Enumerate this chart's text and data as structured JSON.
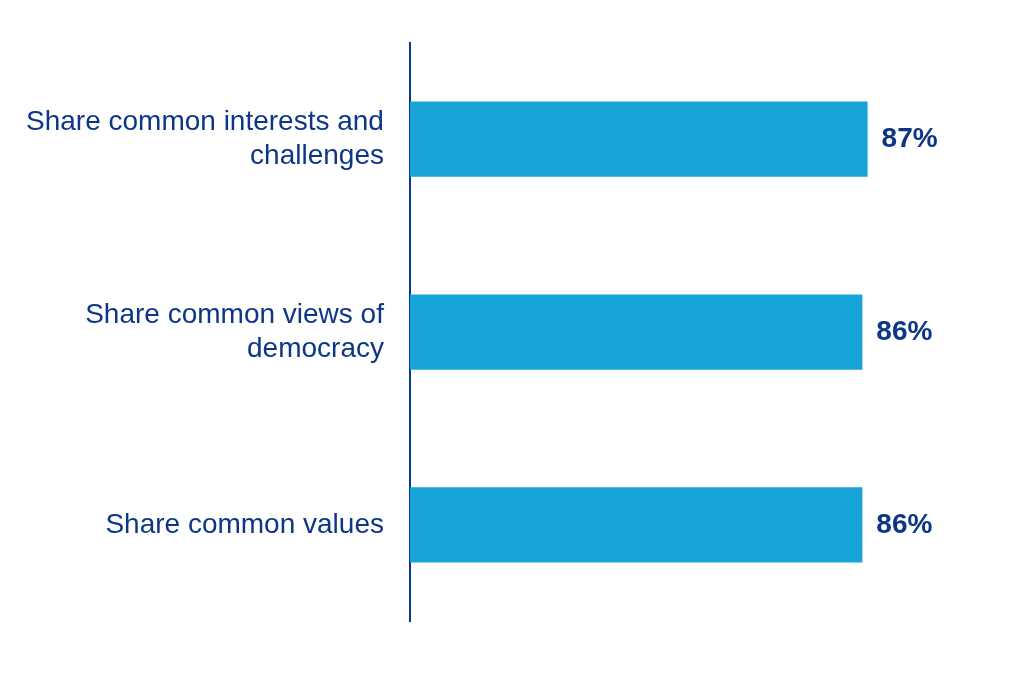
{
  "chart_data": {
    "type": "bar",
    "orientation": "horizontal",
    "categories": [
      "Share common interests and challenges",
      "Share common views of democracy",
      "Share common values"
    ],
    "values": [
      87,
      86,
      86
    ],
    "value_labels": [
      "87%",
      "86%",
      "86%"
    ],
    "color": "#16a3d5",
    "legend": false
  }
}
